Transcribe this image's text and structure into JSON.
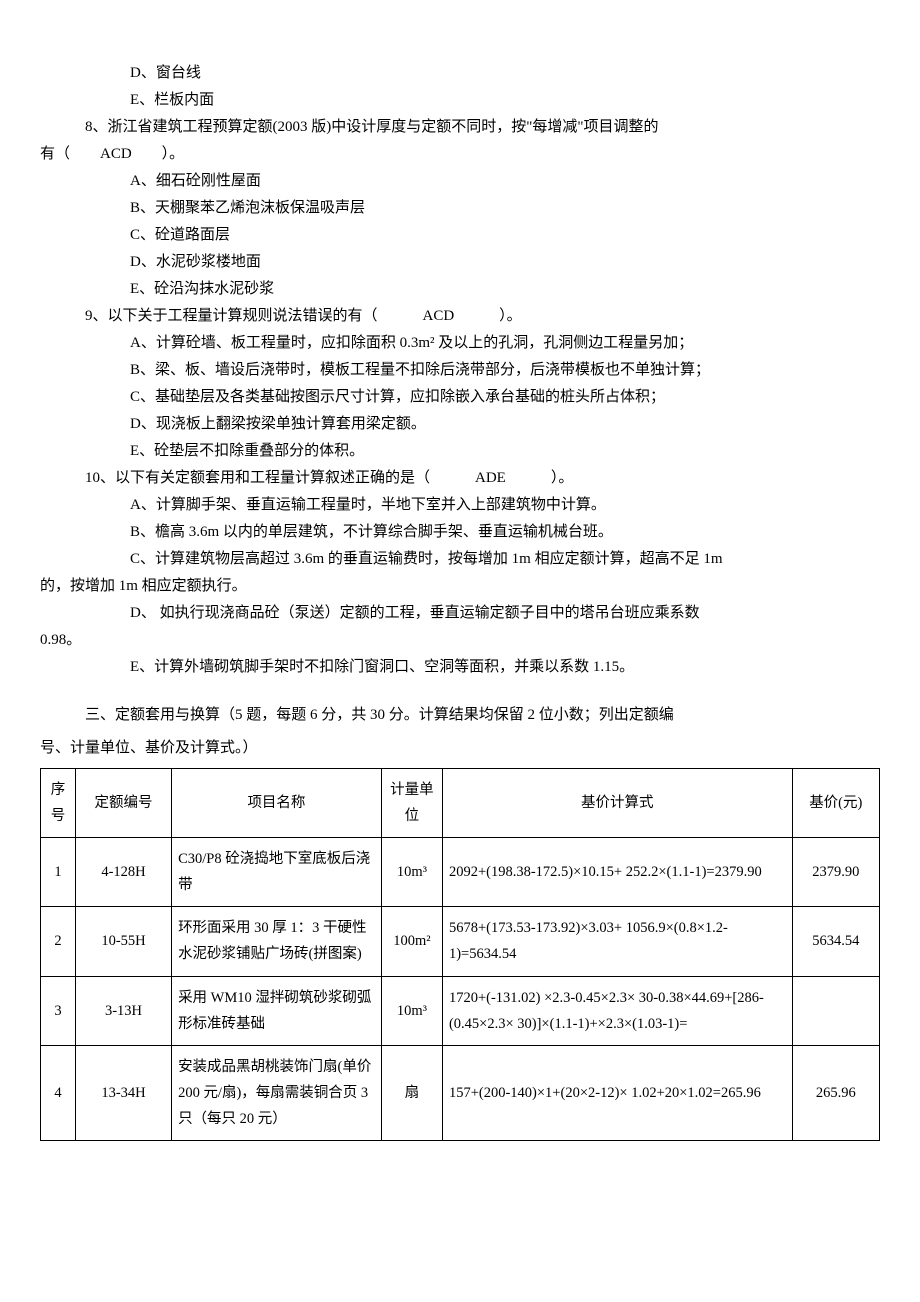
{
  "options_d_e": {
    "d": "D、窗台线",
    "e": "E、栏板内面"
  },
  "q8": {
    "stem_line1": "8、浙江省建筑工程预算定额(2003 版)中设计厚度与定额不同时，按\"每增减\"项目调整的",
    "stem_line2": "有（　　ACD　　）。",
    "a": "A、细石砼刚性屋面",
    "b": "B、天棚聚苯乙烯泡沫板保温吸声层",
    "c": "C、砼道路面层",
    "d": "D、水泥砂浆楼地面",
    "e": "E、砼沿沟抹水泥砂浆"
  },
  "q9": {
    "stem": "9、以下关于工程量计算规则说法错误的有（　　　ACD　　　）。",
    "a": "A、计算砼墙、板工程量时，应扣除面积 0.3m² 及以上的孔洞，孔洞侧边工程量另加；",
    "b": "B、梁、板、墙设后浇带时，模板工程量不扣除后浇带部分，后浇带模板也不单独计算；",
    "c": "C、基础垫层及各类基础按图示尺寸计算，应扣除嵌入承台基础的桩头所占体积；",
    "d": "D、现浇板上翻梁按梁单独计算套用梁定额。",
    "e": "E、砼垫层不扣除重叠部分的体积。"
  },
  "q10": {
    "stem": "10、以下有关定额套用和工程量计算叙述正确的是（　　　ADE　　　）。",
    "a": "A、计算脚手架、垂直运输工程量时，半地下室并入上部建筑物中计算。",
    "b": "B、檐高 3.6m 以内的单层建筑，不计算综合脚手架、垂直运输机械台班。",
    "c_line1": "C、计算建筑物层高超过 3.6m 的垂直运输费时，按每增加 1m 相应定额计算，超高不足 1m",
    "c_line2": "的，按增加 1m 相应定额执行。",
    "d_line1": "D、 如执行现浇商品砼（泵送）定额的工程，垂直运输定额子目中的塔吊台班应乘系数",
    "d_line2": "0.98。",
    "e": "E、计算外墙砌筑脚手架时不扣除门窗洞口、空洞等面积，并乘以系数 1.15。"
  },
  "section3": {
    "title_line1": "三、定额套用与换算（5 题，每题 6 分，共 30 分。计算结果均保留 2 位小数；列出定额编",
    "title_line2": "号、计量单位、基价及计算式。）"
  },
  "table": {
    "headers": {
      "seq": "序号",
      "code": "定额编号",
      "name": "项目名称",
      "unit": "计量单位",
      "formula": "基价计算式",
      "price": "基价(元)"
    },
    "rows": [
      {
        "seq": "1",
        "code": "4-128H",
        "name": "C30/P8 砼浇捣地下室底板后浇带",
        "unit": "10m³",
        "formula": "2092+(198.38-172.5)×10.15+ 252.2×(1.1-1)=2379.90",
        "price": "2379.90"
      },
      {
        "seq": "2",
        "code": "10-55H",
        "name": "环形面采用 30 厚 1：3 干硬性水泥砂浆铺贴广场砖(拼图案)",
        "unit": "100m²",
        "formula": "5678+(173.53-173.92)×3.03+ 1056.9×(0.8×1.2-1)=5634.54",
        "price": "5634.54"
      },
      {
        "seq": "3",
        "code": "3-13H",
        "name": "采用 WM10 湿拌砌筑砂浆砌弧形标准砖基础",
        "unit": "10m³",
        "formula": "1720+(-131.02) ×2.3-0.45×2.3× 30-0.38×44.69+[286-(0.45×2.3× 30)]×(1.1-1)+×2.3×(1.03-1)=",
        "price": ""
      },
      {
        "seq": "4",
        "code": "13-34H",
        "name": "安装成品黑胡桃装饰门扇(单价 200 元/扇)，每扇需装铜合页 3 只（每只 20 元）",
        "unit": "扇",
        "formula": "157+(200-140)×1+(20×2-12)× 1.02+20×1.02=265.96",
        "price": "265.96"
      }
    ]
  }
}
